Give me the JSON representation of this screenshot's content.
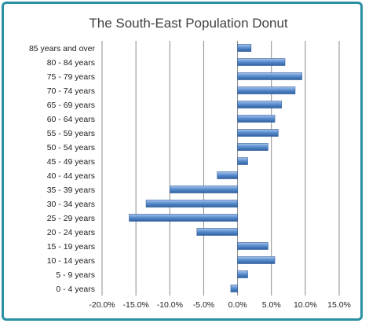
{
  "chart_data": {
    "type": "bar",
    "orientation": "horizontal",
    "title": "The South-East Population Donut",
    "xlabel": "",
    "ylabel": "",
    "categories": [
      "0 - 4 years",
      "5 - 9 years",
      "10 - 14 years",
      "15 - 19 years",
      "20 - 24 years",
      "25 - 29 years",
      "30 - 34 years",
      "35 - 39 years",
      "40 - 44 years",
      "45 - 49 years",
      "50 - 54 years",
      "55 - 59 years",
      "60 - 64 years",
      "65 - 69 years",
      "70 - 74 years",
      "75 - 79 years",
      "80 - 84 years",
      "85 years and over"
    ],
    "values": [
      -1.0,
      1.5,
      5.5,
      4.5,
      -6.0,
      -16.0,
      -13.5,
      -10.0,
      -3.0,
      1.5,
      4.5,
      6.0,
      5.5,
      6.5,
      8.5,
      9.5,
      7.0,
      2.0
    ],
    "xlim": [
      -20,
      15
    ],
    "xticks": [
      "-20.0%",
      "-15.0%",
      "-10.0%",
      "-5.0%",
      "0.0%",
      "5.0%",
      "10.0%",
      "15.0%"
    ],
    "xtick_values": [
      -20,
      -15,
      -10,
      -5,
      0,
      5,
      10,
      15
    ],
    "grid": true,
    "bar_color": "#4f81bd",
    "frame_color": "#2a8fa3"
  }
}
